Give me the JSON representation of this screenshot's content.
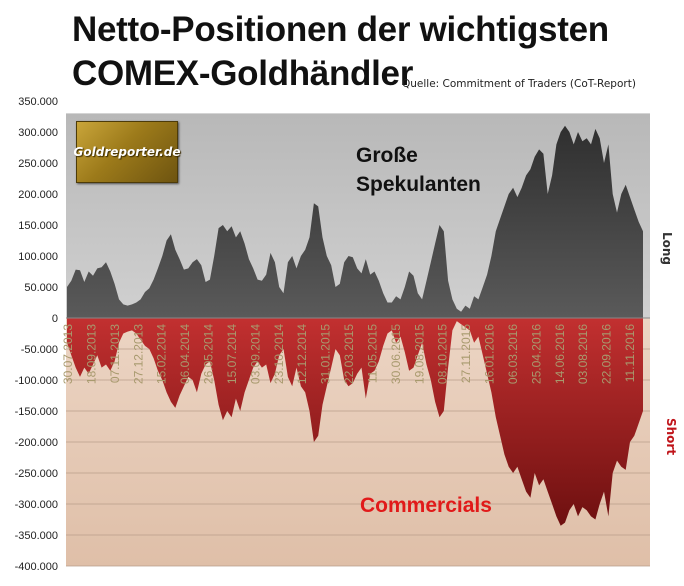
{
  "header": {
    "title_line1": "Netto-Positionen der wichtigsten",
    "title_line2": "COMEX-Goldhändler",
    "source": "Quelle: Commitment of Traders (CoT-Report)"
  },
  "logo_text": "Goldreporter.de",
  "labels": {
    "speculators_line1": "Große",
    "speculators_line2": "Spekulanten",
    "commercials": "Commercials",
    "long": "Long",
    "short": "Short"
  },
  "colors": {
    "speculators_fill": "#474747",
    "speculators_bg": "#c3c3c3",
    "commercials_fill": "#a31f1f",
    "commercials_bg": "#e7cab6",
    "commercials_label": "#e11a1a",
    "date_label": "#a89a6e"
  },
  "chart_data": {
    "type": "area",
    "title": "Netto-Positionen der wichtigsten COMEX-Goldhändler",
    "ylim": [
      -400000,
      350000
    ],
    "yticks": [
      "350.000",
      "300.000",
      "250.000",
      "200.000",
      "150.000",
      "100.000",
      "50.000",
      "0",
      "-50.000",
      "-100.000",
      "-150.000",
      "-200.000",
      "-250.000",
      "-300.000",
      "-350.000",
      "-400.000"
    ],
    "ytick_values": [
      350000,
      300000,
      250000,
      200000,
      150000,
      100000,
      50000,
      0,
      -50000,
      -100000,
      -150000,
      -200000,
      -250000,
      -300000,
      -350000,
      -400000
    ],
    "x_tick_labels": [
      "30.07.2013",
      "18.09.2013",
      "07.11.2013",
      "27.12.2013",
      "15.02.2014",
      "06.04.2014",
      "26.05.2014",
      "15.07.2014",
      "03.09.2014",
      "23.10.2014",
      "12.12.2014",
      "31.01.2015",
      "22.03.2015",
      "11.05.2015",
      "30.06.2015",
      "19.08.2015",
      "08.10.2015",
      "27.11.2015",
      "16.01.2016",
      "06.03.2016",
      "25.04.2016",
      "14.06.2016",
      "03.08.2016",
      "22.09.2016",
      "11.11.2016"
    ],
    "series": [
      {
        "name": "Große Spekulanten",
        "values": [
          50000,
          60000,
          78000,
          77000,
          58000,
          75000,
          68000,
          80000,
          82000,
          90000,
          75000,
          55000,
          30000,
          22000,
          20000,
          22000,
          25000,
          30000,
          42000,
          48000,
          62000,
          80000,
          100000,
          125000,
          135000,
          110000,
          95000,
          78000,
          80000,
          90000,
          95000,
          85000,
          58000,
          62000,
          100000,
          145000,
          150000,
          140000,
          148000,
          130000,
          140000,
          120000,
          95000,
          80000,
          62000,
          60000,
          70000,
          105000,
          90000,
          50000,
          40000,
          90000,
          100000,
          80000,
          100000,
          110000,
          130000,
          185000,
          180000,
          130000,
          100000,
          85000,
          50000,
          55000,
          90000,
          100000,
          98000,
          80000,
          72000,
          95000,
          70000,
          75000,
          60000,
          40000,
          25000,
          25000,
          35000,
          30000,
          50000,
          75000,
          68000,
          40000,
          30000,
          60000,
          90000,
          120000,
          150000,
          140000,
          60000,
          30000,
          15000,
          10000,
          20000,
          15000,
          35000,
          30000,
          50000,
          70000,
          100000,
          140000,
          160000,
          180000,
          200000,
          210000,
          195000,
          210000,
          230000,
          240000,
          260000,
          272000,
          265000,
          200000,
          230000,
          280000,
          300000,
          310000,
          300000,
          280000,
          300000,
          285000,
          290000,
          280000,
          305000,
          290000,
          250000,
          280000,
          200000,
          170000,
          200000,
          215000,
          195000,
          175000,
          155000,
          140000
        ]
      },
      {
        "name": "Commercials",
        "values": [
          -40000,
          -60000,
          -80000,
          -95000,
          -80000,
          -90000,
          -75000,
          -60000,
          -80000,
          -75000,
          -85000,
          -70000,
          -40000,
          -25000,
          -22000,
          -20000,
          -25000,
          -35000,
          -45000,
          -50000,
          -65000,
          -85000,
          -100000,
          -120000,
          -135000,
          -145000,
          -125000,
          -110000,
          -95000,
          -100000,
          -120000,
          -90000,
          -75000,
          -70000,
          -100000,
          -140000,
          -165000,
          -150000,
          -160000,
          -130000,
          -150000,
          -120000,
          -100000,
          -80000,
          -70000,
          -80000,
          -75000,
          -105000,
          -90000,
          -60000,
          -50000,
          -95000,
          -110000,
          -80000,
          -110000,
          -120000,
          -150000,
          -200000,
          -190000,
          -140000,
          -110000,
          -80000,
          -50000,
          -60000,
          -100000,
          -110000,
          -105000,
          -90000,
          -80000,
          -130000,
          -90000,
          -85000,
          -70000,
          -45000,
          -25000,
          -20000,
          -40000,
          -30000,
          -55000,
          -85000,
          -80000,
          -60000,
          -40000,
          -75000,
          -100000,
          -135000,
          -160000,
          -150000,
          -80000,
          -20000,
          -5000,
          -10000,
          -15000,
          -20000,
          -40000,
          -30000,
          -60000,
          -90000,
          -120000,
          -160000,
          -190000,
          -220000,
          -240000,
          -250000,
          -240000,
          -260000,
          -280000,
          -290000,
          -250000,
          -270000,
          -260000,
          -280000,
          -300000,
          -320000,
          -335000,
          -330000,
          -310000,
          -300000,
          -320000,
          -305000,
          -310000,
          -320000,
          -325000,
          -300000,
          -280000,
          -320000,
          -250000,
          -230000,
          -240000,
          -245000,
          -200000,
          -190000,
          -170000,
          -150000
        ]
      }
    ]
  }
}
